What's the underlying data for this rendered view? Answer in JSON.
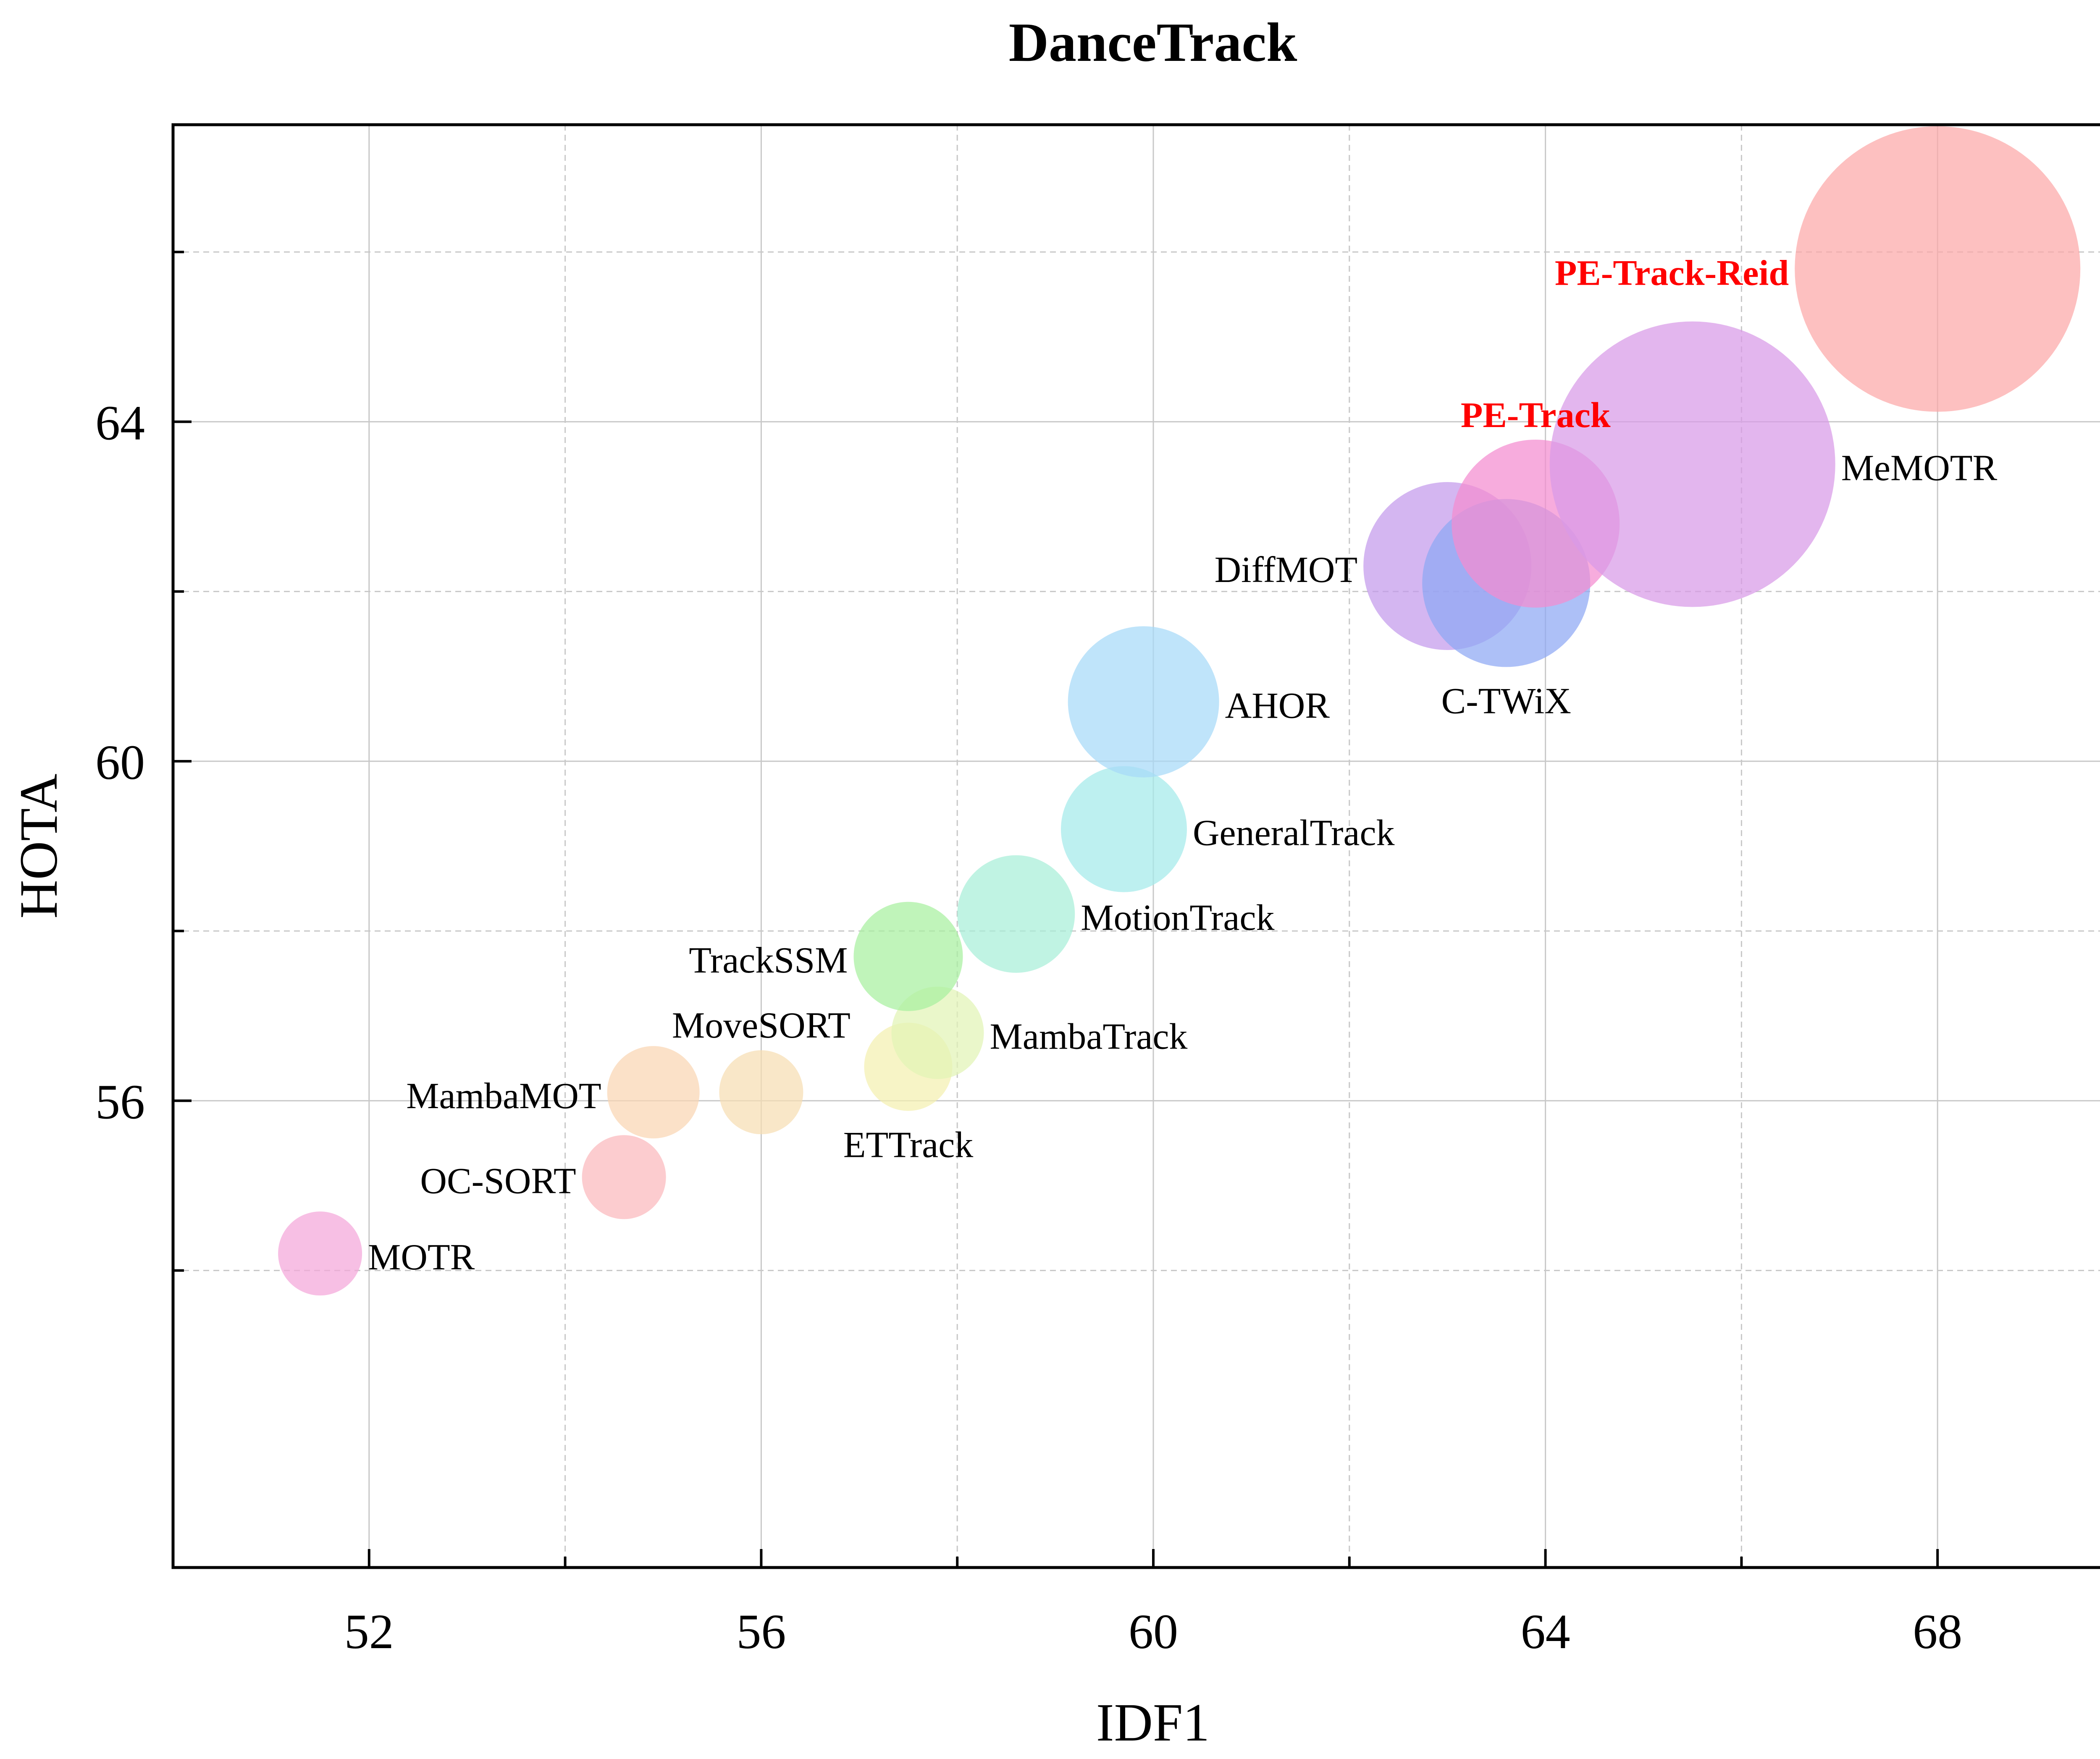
{
  "chart_data": {
    "type": "scatter",
    "title": "DanceTrack",
    "xlabel": "IDF1",
    "ylabel": "HOTA",
    "xlim": [
      50,
      70
    ],
    "ylim": [
      50.5,
      67.5
    ],
    "x_ticks": [
      52,
      56,
      60,
      64,
      68
    ],
    "y_ticks": [
      56,
      60,
      64
    ],
    "grid": true,
    "legend": "none",
    "points": [
      {
        "label": "MOTR",
        "x": 51.5,
        "y": 54.2,
        "size": 1.0,
        "color": "#F4A6DA",
        "label_pos": "right",
        "highlight": false
      },
      {
        "label": "OC-SORT",
        "x": 54.6,
        "y": 55.1,
        "size": 1.0,
        "color": "#FBB8BC",
        "label_pos": "left",
        "highlight": false
      },
      {
        "label": "MambaMOT",
        "x": 54.9,
        "y": 56.1,
        "size": 1.1,
        "color": "#F9D6B3",
        "label_pos": "left",
        "highlight": false
      },
      {
        "label": "MoveSORT",
        "x": 56.0,
        "y": 56.1,
        "size": 1.0,
        "color": "#F6DEB3",
        "label_pos": "top",
        "highlight": false
      },
      {
        "label": "ETTrack",
        "x": 57.5,
        "y": 56.4,
        "size": 1.05,
        "color": "#F4F0B0",
        "label_pos": "bottom",
        "highlight": false
      },
      {
        "label": "MambaTrack",
        "x": 57.8,
        "y": 56.8,
        "size": 1.1,
        "color": "#E2F4B5",
        "label_pos": "right",
        "highlight": false
      },
      {
        "label": "TrackSSM",
        "x": 57.5,
        "y": 57.7,
        "size": 1.3,
        "color": "#A8F0A0",
        "label_pos": "left",
        "highlight": false
      },
      {
        "label": "MotionTrack",
        "x": 58.6,
        "y": 58.2,
        "size": 1.4,
        "color": "#A8EED8",
        "label_pos": "right",
        "highlight": false
      },
      {
        "label": "GeneralTrack",
        "x": 59.7,
        "y": 59.2,
        "size": 1.5,
        "color": "#A4EAEA",
        "label_pos": "right",
        "highlight": false
      },
      {
        "label": "AHOR",
        "x": 59.9,
        "y": 60.7,
        "size": 1.8,
        "color": "#A6DAF8",
        "label_pos": "right",
        "highlight": false
      },
      {
        "label": "DiffMOT",
        "x": 63.0,
        "y": 62.3,
        "size": 2.0,
        "color": "#C49AEC",
        "label_pos": "left",
        "highlight": false
      },
      {
        "label": "C-TWiX",
        "x": 63.6,
        "y": 62.1,
        "size": 2.0,
        "color": "#8EA8F4",
        "label_pos": "bottom",
        "highlight": false
      },
      {
        "label": "PE-Track",
        "x": 63.9,
        "y": 62.8,
        "size": 2.0,
        "color": "#F48CD0",
        "label_pos": "top",
        "highlight": true
      },
      {
        "label": "MeMOTR",
        "x": 65.5,
        "y": 63.5,
        "size": 3.4,
        "color": "#D89AE8",
        "label_pos": "right",
        "highlight": false
      },
      {
        "label": "PE-Track-Reid",
        "x": 68.0,
        "y": 65.8,
        "size": 3.4,
        "color": "#FCA8A8",
        "label_pos": "left",
        "highlight": true
      }
    ]
  },
  "colors": {
    "highlight_label": "#FF0000",
    "grid": "#C8C8C8",
    "axis": "#000000"
  }
}
